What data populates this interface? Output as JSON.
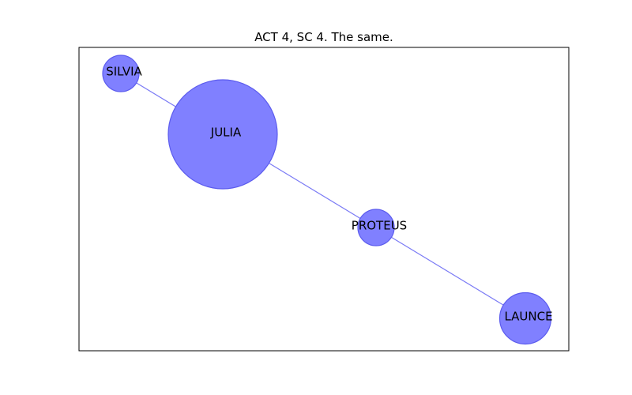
{
  "figure": {
    "title": "ACT 4, SC 4. The same."
  },
  "style": {
    "node_color": "#8080ff",
    "node_edge_color": "#5c5cee",
    "edge_color": "#7a7af5",
    "frame_color": "#000000"
  },
  "graph": {
    "nodes": [
      {
        "id": "silvia",
        "label": "SILVIA",
        "weight": 1
      },
      {
        "id": "julia",
        "label": "JULIA",
        "weight": 9
      },
      {
        "id": "proteus",
        "label": "PROTEUS",
        "weight": 1
      },
      {
        "id": "launce",
        "label": "LAUNCE",
        "weight": 2
      }
    ],
    "edges": [
      {
        "source": "silvia",
        "target": "launce"
      }
    ]
  }
}
